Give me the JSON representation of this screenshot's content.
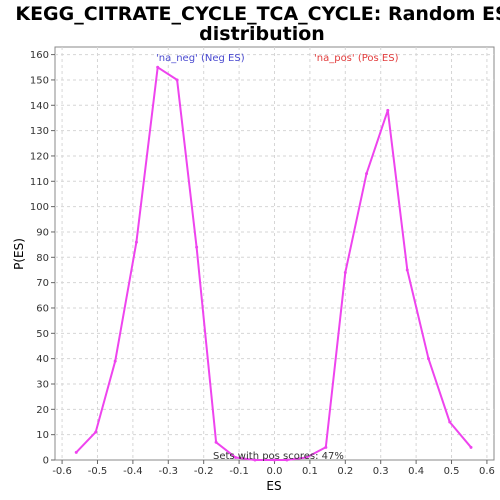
{
  "chart_data": {
    "type": "line",
    "title": "KEGG_CITRATE_CYCLE_TCA_CYCLE: Random ES distribution",
    "title_lines": [
      "KEGG_CITRATE_CYCLE_TCA_CYCLE: Random ES",
      "distribution"
    ],
    "xlabel": "ES",
    "ylabel": "P(ES)",
    "xlim": [
      -0.62,
      0.62
    ],
    "ylim": [
      0,
      163
    ],
    "x_ticks": [
      -0.6,
      -0.5,
      -0.4,
      -0.3,
      -0.2,
      -0.1,
      0.0,
      0.1,
      0.2,
      0.3,
      0.4,
      0.5,
      0.6
    ],
    "x_tick_labels": [
      "-0.6",
      "-0.5",
      "-0.4",
      "-0.3",
      "-0.2",
      "-0.1",
      "0.0",
      "0.1",
      "0.2",
      "0.3",
      "0.4",
      "0.5",
      "0.6"
    ],
    "y_ticks": [
      0,
      10,
      20,
      30,
      40,
      50,
      60,
      70,
      80,
      90,
      100,
      110,
      120,
      130,
      140,
      150,
      160
    ],
    "y_tick_labels": [
      "0",
      "10",
      "20",
      "30",
      "40",
      "50",
      "60",
      "70",
      "80",
      "90",
      "100",
      "110",
      "120",
      "130",
      "140",
      "150",
      "160"
    ],
    "grid": true,
    "color": "#ee44ee",
    "series": [
      {
        "x": [
          -0.56,
          -0.505,
          -0.45,
          -0.39,
          -0.33,
          -0.275,
          -0.22,
          -0.165,
          -0.11,
          -0.055,
          0.0,
          0.035,
          0.09,
          0.145,
          0.2,
          0.26,
          0.32,
          0.375,
          0.435,
          0.495,
          0.555
        ],
        "y": [
          3,
          11,
          39,
          86,
          155,
          150,
          84,
          7,
          1,
          0,
          0,
          0,
          1,
          5,
          74,
          113,
          138,
          75,
          40,
          15,
          5
        ]
      }
    ],
    "annotations": {
      "neg_label": "'na_neg' (Neg ES)",
      "neg_color": "#4a4ad0",
      "pos_label": "'na_pos' (Pos ES)",
      "pos_color": "#e23c3c",
      "footer": "Sets with pos scores: 47%"
    }
  }
}
